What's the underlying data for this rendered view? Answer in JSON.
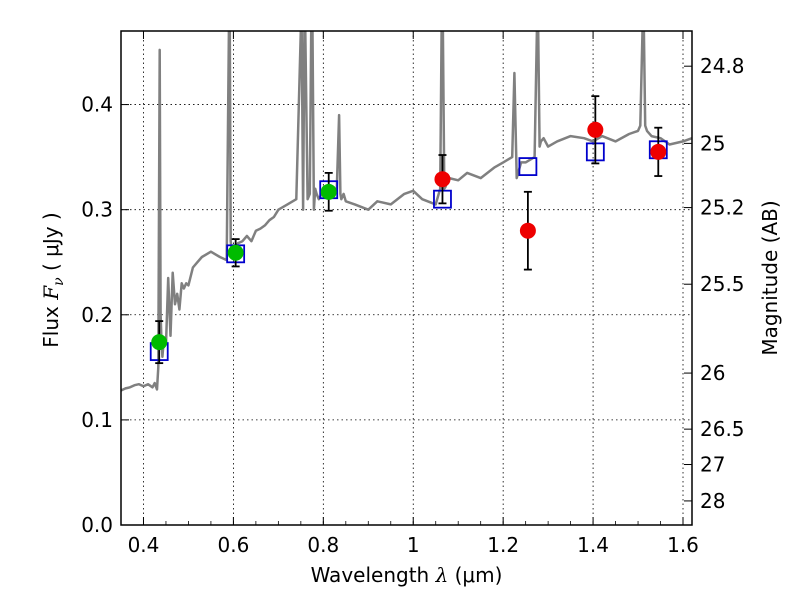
{
  "chart_data": {
    "type": "scatter",
    "title": "",
    "xlabel": {
      "prefix": "Wavelength  ",
      "symbol": "λ",
      "unit": " (μm)"
    },
    "ylabel": {
      "prefix": "Flux  ",
      "symbol": "F",
      "subscript": "ν",
      "unit": "  ( μJy )"
    },
    "ylabel_right": "Magnitude (AB)",
    "xlim": [
      0.35,
      1.62
    ],
    "ylim": [
      0.0,
      0.47
    ],
    "x_ticks": [
      0.4,
      0.6,
      0.8,
      1.0,
      1.2,
      1.4,
      1.6
    ],
    "x_tick_labels": [
      "0.4",
      "0.6",
      "0.8",
      "1",
      "1.2",
      "1.4",
      "1.6"
    ],
    "y_ticks": [
      0.0,
      0.1,
      0.2,
      0.3,
      0.4
    ],
    "y_tick_labels": [
      "0.0",
      "0.1",
      "0.2",
      "0.3",
      "0.4"
    ],
    "right_ticks": [
      {
        "label": "24.8",
        "value": 24.8
      },
      {
        "label": "25",
        "value": 25.0
      },
      {
        "label": "25.2",
        "value": 25.2
      },
      {
        "label": "25.5",
        "value": 25.5
      },
      {
        "label": "26",
        "value": 26.0
      },
      {
        "label": "26.5",
        "value": 26.5
      },
      {
        "label": "27",
        "value": 27.0
      },
      {
        "label": "28",
        "value": 28.0
      }
    ],
    "grid": true,
    "colors": {
      "spectrum": "#808080",
      "green": "#00bb00",
      "red": "#ee0000",
      "square": "#0000cc",
      "errorbar": "#000000"
    },
    "series": [
      {
        "kind": "model-spectrum",
        "x": [
          0.35,
          0.36,
          0.37,
          0.38,
          0.39,
          0.4,
          0.41,
          0.42,
          0.425,
          0.43,
          0.433,
          0.436,
          0.438,
          0.44,
          0.442,
          0.445,
          0.45,
          0.455,
          0.46,
          0.465,
          0.47,
          0.475,
          0.48,
          0.485,
          0.49,
          0.495,
          0.5,
          0.51,
          0.52,
          0.53,
          0.55,
          0.57,
          0.585,
          0.59,
          0.592,
          0.594,
          0.596,
          0.598,
          0.6,
          0.605,
          0.61,
          0.62,
          0.63,
          0.64,
          0.65,
          0.66,
          0.67,
          0.68,
          0.69,
          0.7,
          0.72,
          0.74,
          0.75,
          0.752,
          0.755,
          0.758,
          0.76,
          0.765,
          0.77,
          0.773,
          0.776,
          0.779,
          0.782,
          0.785,
          0.79,
          0.8,
          0.81,
          0.82,
          0.83,
          0.835,
          0.838,
          0.84,
          0.845,
          0.85,
          0.87,
          0.9,
          0.92,
          0.95,
          0.98,
          1.0,
          1.02,
          1.05,
          1.06,
          1.063,
          1.066,
          1.069,
          1.072,
          1.075,
          1.08,
          1.1,
          1.12,
          1.15,
          1.18,
          1.2,
          1.22,
          1.225,
          1.23,
          1.24,
          1.25,
          1.27,
          1.275,
          1.278,
          1.281,
          1.284,
          1.29,
          1.3,
          1.32,
          1.35,
          1.38,
          1.4,
          1.42,
          1.45,
          1.48,
          1.5,
          1.505,
          1.51,
          1.513,
          1.516,
          1.52,
          1.53,
          1.55,
          1.57,
          1.6,
          1.62
        ],
        "y": [
          0.128,
          0.13,
          0.131,
          0.133,
          0.134,
          0.132,
          0.134,
          0.131,
          0.135,
          0.129,
          0.15,
          0.452,
          0.2,
          0.175,
          0.16,
          0.175,
          0.172,
          0.235,
          0.18,
          0.24,
          0.21,
          0.22,
          0.205,
          0.23,
          0.225,
          0.23,
          0.228,
          0.245,
          0.25,
          0.255,
          0.26,
          0.255,
          0.252,
          0.47,
          0.47,
          0.27,
          0.262,
          0.258,
          0.26,
          0.262,
          0.268,
          0.27,
          0.275,
          0.27,
          0.28,
          0.282,
          0.285,
          0.29,
          0.293,
          0.3,
          0.305,
          0.31,
          0.47,
          0.47,
          0.3,
          0.47,
          0.47,
          0.31,
          0.315,
          0.47,
          0.47,
          0.3,
          0.32,
          0.315,
          0.31,
          0.318,
          0.32,
          0.318,
          0.32,
          0.39,
          0.315,
          0.31,
          0.315,
          0.308,
          0.305,
          0.3,
          0.308,
          0.305,
          0.315,
          0.318,
          0.31,
          0.305,
          0.32,
          0.47,
          0.47,
          0.32,
          0.322,
          0.33,
          0.33,
          0.328,
          0.335,
          0.33,
          0.34,
          0.345,
          0.35,
          0.43,
          0.33,
          0.345,
          0.345,
          0.35,
          0.47,
          0.47,
          0.36,
          0.365,
          0.368,
          0.36,
          0.365,
          0.37,
          0.368,
          0.365,
          0.37,
          0.365,
          0.372,
          0.375,
          0.38,
          0.47,
          0.47,
          0.38,
          0.375,
          0.37,
          0.368,
          0.362,
          0.365,
          0.368
        ]
      },
      {
        "kind": "model-photometry-square",
        "x": [
          0.435,
          0.605,
          0.812,
          1.065,
          1.255,
          1.405,
          1.545
        ],
        "y": [
          0.165,
          0.258,
          0.319,
          0.31,
          0.341,
          0.355,
          0.357
        ]
      },
      {
        "kind": "observed-green",
        "x": [
          0.435,
          0.605,
          0.812
        ],
        "y": [
          0.174,
          0.259,
          0.317
        ],
        "err": [
          0.02,
          0.013,
          0.018
        ]
      },
      {
        "kind": "observed-red",
        "x": [
          1.065,
          1.255,
          1.405,
          1.545
        ],
        "y": [
          0.329,
          0.28,
          0.376,
          0.355
        ],
        "err": [
          0.023,
          0.037,
          0.032,
          0.023
        ]
      }
    ]
  }
}
